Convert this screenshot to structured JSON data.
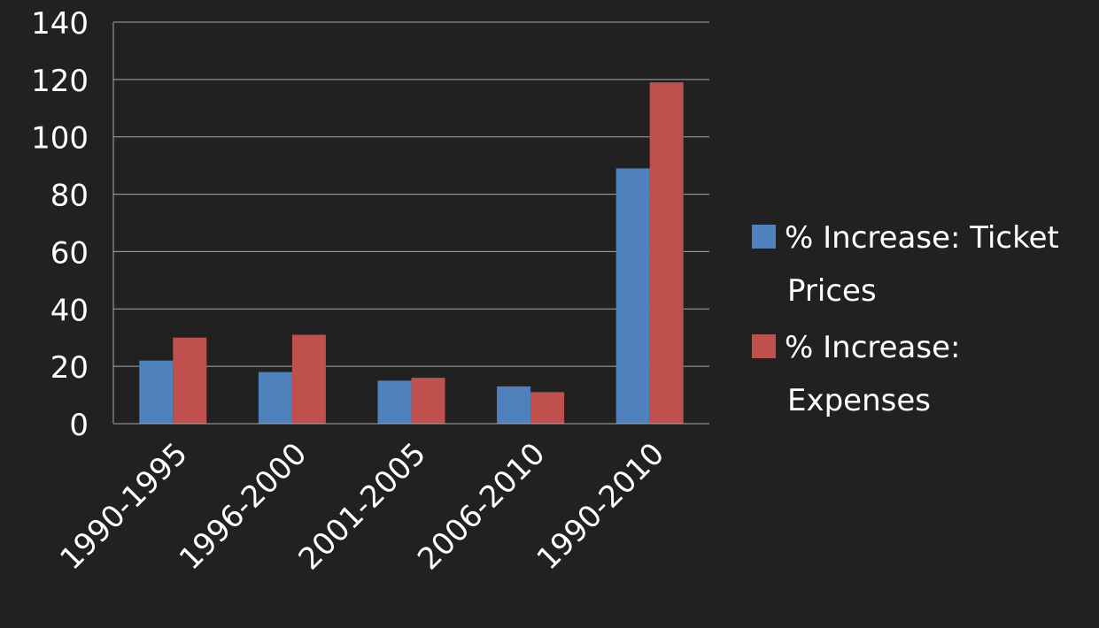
{
  "colors": {
    "background": "#212121",
    "gridline": "#a6a6a6",
    "text": "#ffffff"
  },
  "chart_data": {
    "type": "bar",
    "categories": [
      "1990-1995",
      "1996-2000",
      "2001-2005",
      "2006-2010",
      "1990-2010"
    ],
    "series": [
      {
        "name": "% Increase: Ticket Prices",
        "legend_lines": [
          "% Increase: Ticket",
          "Prices"
        ],
        "color": "#4f81bd",
        "values": [
          22,
          18,
          15,
          13,
          89
        ]
      },
      {
        "name": "% Increase: Expenses",
        "legend_lines": [
          "% Increase:",
          "Expenses"
        ],
        "color": "#c0504d",
        "values": [
          30,
          31,
          16,
          11,
          119
        ]
      }
    ],
    "ylim": [
      0,
      140
    ],
    "yticks": [
      0,
      20,
      40,
      60,
      80,
      100,
      120,
      140
    ],
    "grid": true,
    "legend": "right",
    "title": "",
    "xlabel": "",
    "ylabel": ""
  }
}
